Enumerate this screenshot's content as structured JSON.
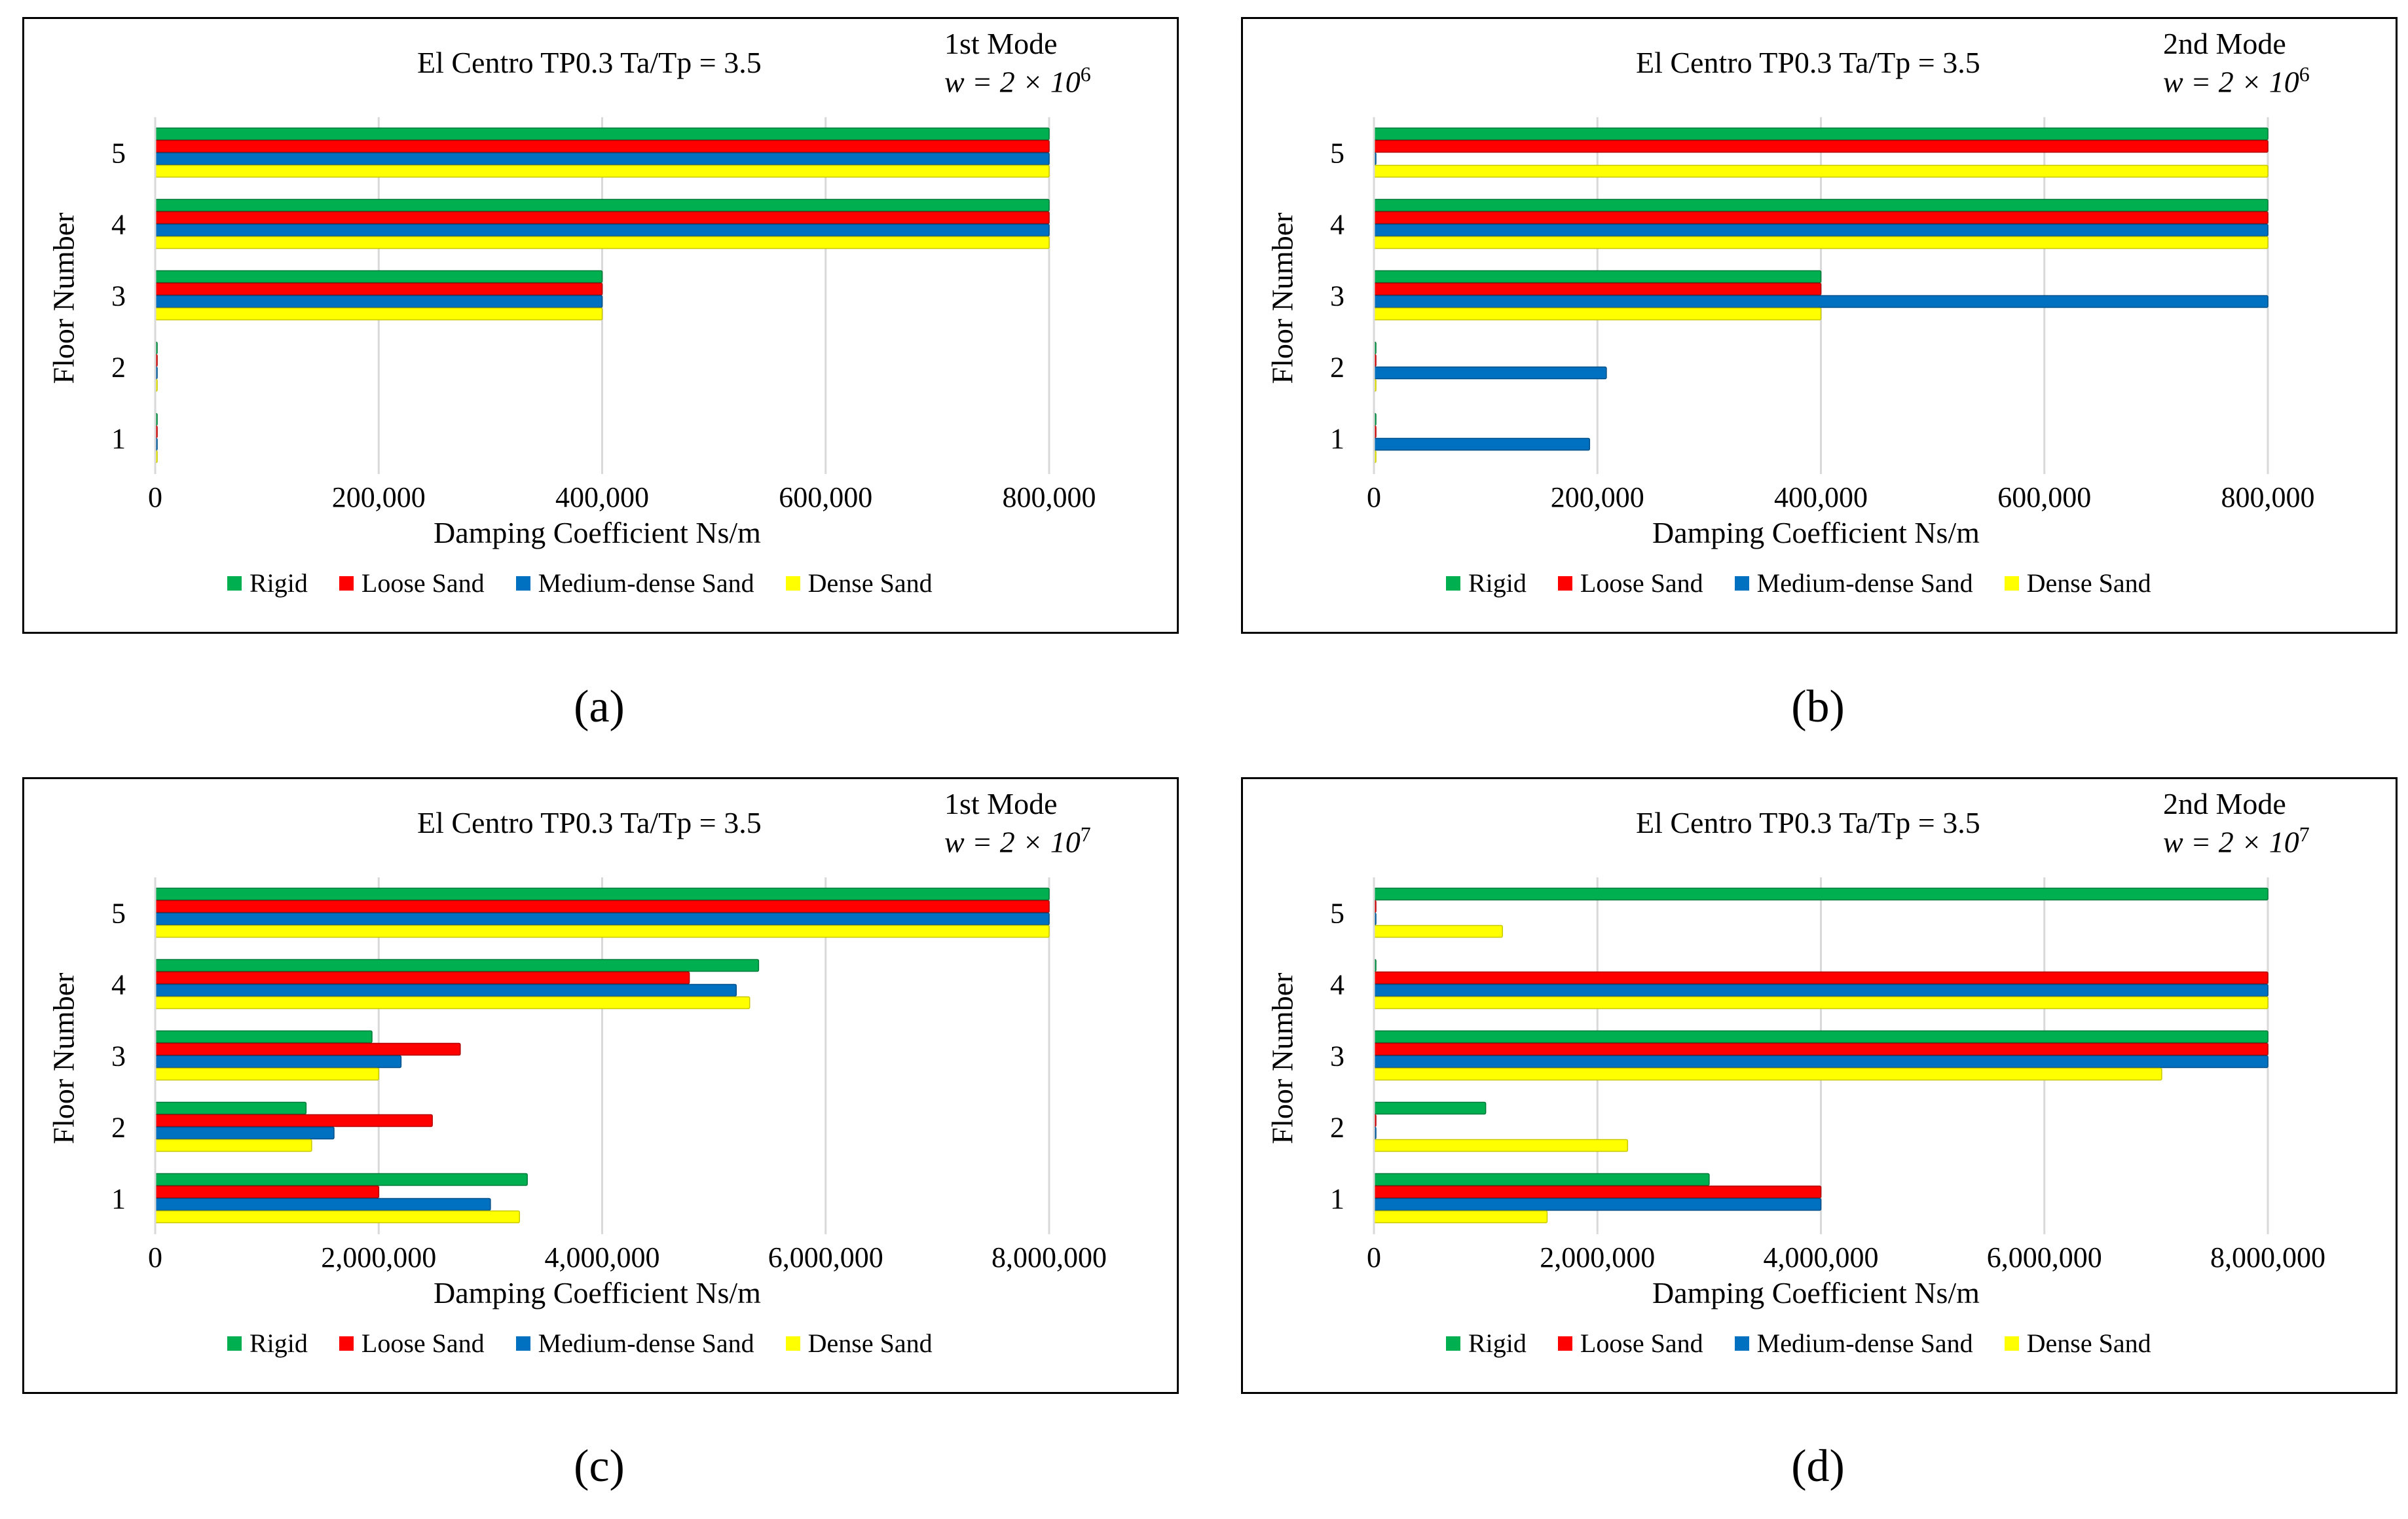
{
  "legend": [
    {
      "name": "Rigid",
      "color": "#00b050"
    },
    {
      "name": "Loose Sand",
      "color": "#ff0000"
    },
    {
      "name": "Medium-dense Sand",
      "color": "#0070c0"
    },
    {
      "name": "Dense Sand",
      "color": "#ffff00"
    }
  ],
  "chart_data": [
    {
      "id": "a",
      "type": "bar",
      "orientation": "horizontal",
      "title": "El Centro TP0.3  Ta/Tp = 3.5",
      "mode": "1st Mode",
      "weight": "w = 2 × 10",
      "weight_exp": "6",
      "xlabel": "Damping Coefficient Ns/m",
      "ylabel": "Floor Number",
      "caption": "(a)",
      "categories": [
        "1",
        "2",
        "3",
        "4",
        "5"
      ],
      "xlim": [
        0,
        800000
      ],
      "xticks": [
        "0",
        "200,000",
        "400,000",
        "600,000",
        "800,000"
      ],
      "xtick_values": [
        0,
        200000,
        400000,
        600000,
        800000
      ],
      "series": [
        {
          "name": "Rigid",
          "values": [
            0,
            0,
            400000,
            800000,
            800000
          ]
        },
        {
          "name": "Loose Sand",
          "values": [
            0,
            0,
            400000,
            800000,
            800000
          ]
        },
        {
          "name": "Medium-dense Sand",
          "values": [
            0,
            0,
            400000,
            800000,
            800000
          ]
        },
        {
          "name": "Dense Sand",
          "values": [
            0,
            0,
            400000,
            800000,
            800000
          ]
        }
      ]
    },
    {
      "id": "b",
      "type": "bar",
      "orientation": "horizontal",
      "title": "El Centro TP0.3  Ta/Tp = 3.5",
      "mode": "2nd Mode",
      "weight": "w = 2 × 10",
      "weight_exp": "6",
      "xlabel": "Damping Coefficient Ns/m",
      "ylabel": "Floor Number",
      "caption": "(b)",
      "categories": [
        "1",
        "2",
        "3",
        "4",
        "5"
      ],
      "xlim": [
        0,
        800000
      ],
      "xticks": [
        "0",
        "200,000",
        "400,000",
        "600,000",
        "800,000"
      ],
      "xtick_values": [
        0,
        200000,
        400000,
        600000,
        800000
      ],
      "series": [
        {
          "name": "Rigid",
          "values": [
            0,
            0,
            400000,
            800000,
            800000
          ]
        },
        {
          "name": "Loose Sand",
          "values": [
            0,
            0,
            400000,
            800000,
            800000
          ]
        },
        {
          "name": "Medium-dense Sand",
          "values": [
            193000,
            208000,
            800000,
            800000,
            0
          ]
        },
        {
          "name": "Dense Sand",
          "values": [
            0,
            0,
            400000,
            800000,
            800000
          ]
        }
      ]
    },
    {
      "id": "c",
      "type": "bar",
      "orientation": "horizontal",
      "title": "El Centro TP0.3  Ta/Tp = 3.5",
      "mode": "1st Mode",
      "weight": "w = 2 × 10",
      "weight_exp": "7",
      "xlabel": "Damping Coefficient Ns/m",
      "ylabel": "Floor Number",
      "caption": "(c)",
      "categories": [
        "1",
        "2",
        "3",
        "4",
        "5"
      ],
      "xlim": [
        0,
        8000000
      ],
      "xticks": [
        "0",
        "2,000,000",
        "4,000,000",
        "6,000,000",
        "8,000,000"
      ],
      "xtick_values": [
        0,
        2000000,
        4000000,
        6000000,
        8000000
      ],
      "series": [
        {
          "name": "Rigid",
          "values": [
            3330000,
            1350000,
            1940000,
            5400000,
            8000000
          ]
        },
        {
          "name": "Loose Sand",
          "values": [
            2000000,
            2480000,
            2730000,
            4780000,
            8000000
          ]
        },
        {
          "name": "Medium-dense Sand",
          "values": [
            3000000,
            1600000,
            2200000,
            5200000,
            8000000
          ]
        },
        {
          "name": "Dense Sand",
          "values": [
            3260000,
            1400000,
            2000000,
            5320000,
            8000000
          ]
        }
      ]
    },
    {
      "id": "d",
      "type": "bar",
      "orientation": "horizontal",
      "title": "El Centro TP0.3  Ta/Tp = 3.5",
      "mode": "2nd Mode",
      "weight": "w = 2 × 10",
      "weight_exp": "7",
      "xlabel": "Damping Coefficient Ns/m",
      "ylabel": "Floor Number",
      "caption": "(d)",
      "categories": [
        "1",
        "2",
        "3",
        "4",
        "5"
      ],
      "xlim": [
        0,
        8000000
      ],
      "xticks": [
        "0",
        "2,000,000",
        "4,000,000",
        "6,000,000",
        "8,000,000"
      ],
      "xtick_values": [
        0,
        2000000,
        4000000,
        6000000,
        8000000
      ],
      "series": [
        {
          "name": "Rigid",
          "values": [
            3000000,
            1000000,
            8000000,
            0,
            8000000
          ]
        },
        {
          "name": "Loose Sand",
          "values": [
            4000000,
            0,
            8000000,
            8000000,
            0
          ]
        },
        {
          "name": "Medium-dense Sand",
          "values": [
            4000000,
            0,
            8000000,
            8000000,
            0
          ]
        },
        {
          "name": "Dense Sand",
          "values": [
            1550000,
            2270000,
            7050000,
            8000000,
            1150000
          ]
        }
      ]
    }
  ]
}
